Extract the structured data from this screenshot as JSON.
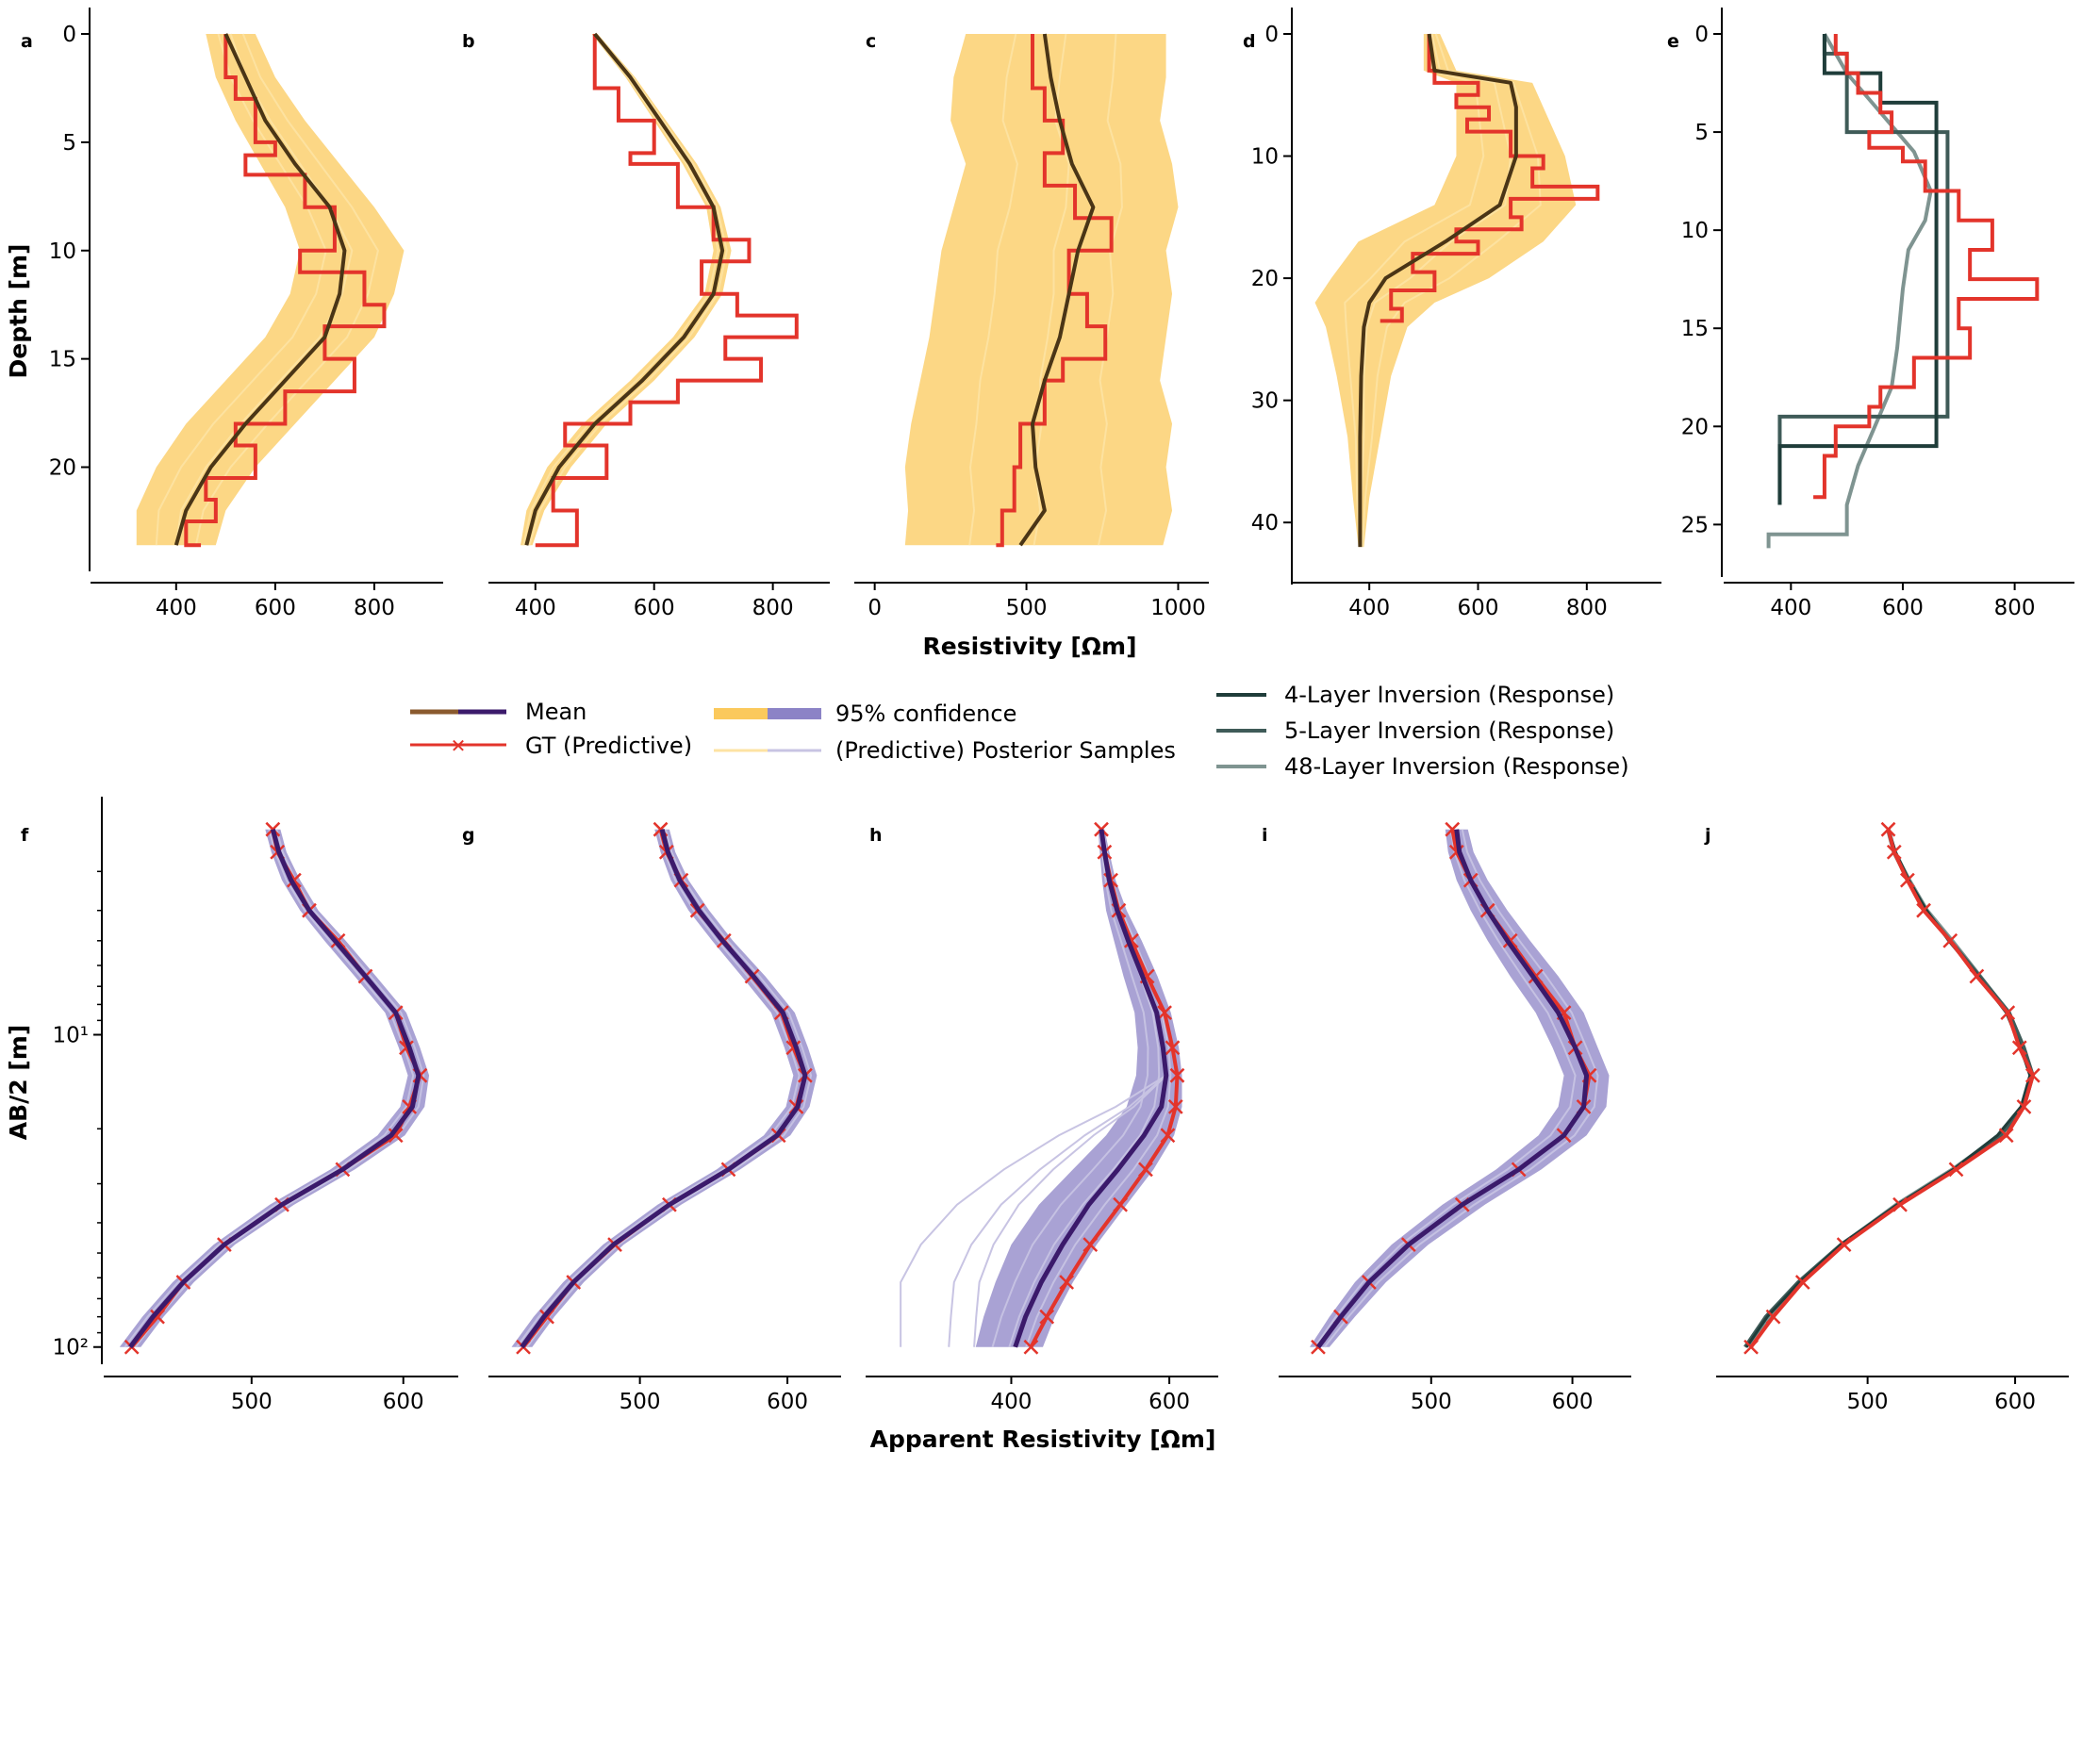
{
  "colors": {
    "mean_top": "#4a3516",
    "mean_bottom": "#3b1a6b",
    "gt": "#e3342b",
    "ci_top": "#fbc95c",
    "ci_bottom": "#8c83c6",
    "sample_top": "#fde3a3",
    "sample_bottom": "#c8c4e3",
    "inv4": "#1f3d3a",
    "inv5": "#3f5b58",
    "inv48": "#7f9491"
  },
  "labels": {
    "depth_axis": "Depth [m]",
    "ab2_axis": "AB/2 [m]",
    "resistivity_axis": "Resistivity  [Ωm]",
    "apparent_axis": "Apparent Resistivity [Ωm]"
  },
  "legend": {
    "mean": "Mean",
    "gt": "GT (Predictive)",
    "ci": "95% confidence",
    "samples": "(Predictive) Posterior Samples",
    "inv4": "4-Layer Inversion (Response)",
    "inv5": "5-Layer Inversion (Response)",
    "inv48": "48-Layer Inversion (Response)"
  },
  "panel_letters": [
    "a",
    "b",
    "c",
    "d",
    "e",
    "f",
    "g",
    "h",
    "i",
    "j"
  ],
  "chart_data": [
    {
      "panel": "a",
      "type": "line",
      "orientation": "depth-profile",
      "xlim": [
        250,
        920
      ],
      "ylim": [
        0,
        24.2
      ],
      "y_reversed": true,
      "xticks": [
        "400",
        "600",
        "800"
      ],
      "yticks": [
        "0",
        "5",
        "10",
        "15",
        "20"
      ],
      "depth": [
        0,
        2,
        4,
        6,
        8,
        10,
        12,
        14,
        16,
        18,
        20,
        22,
        23.6
      ],
      "mean": [
        500,
        540,
        580,
        640,
        710,
        740,
        730,
        700,
        620,
        540,
        470,
        420,
        400
      ],
      "ci_low": [
        460,
        480,
        520,
        570,
        620,
        650,
        630,
        580,
        500,
        420,
        360,
        320,
        320
      ],
      "ci_high": [
        560,
        600,
        660,
        730,
        800,
        860,
        840,
        800,
        720,
        640,
        560,
        500,
        480
      ],
      "gt": [
        [
          500,
          0
        ],
        [
          520,
          2
        ],
        [
          560,
          3
        ],
        [
          600,
          5
        ],
        [
          540,
          5.6
        ],
        [
          660,
          6.5
        ],
        [
          720,
          8
        ],
        [
          650,
          10
        ],
        [
          780,
          11
        ],
        [
          820,
          12.5
        ],
        [
          700,
          13.5
        ],
        [
          760,
          15
        ],
        [
          620,
          16.5
        ],
        [
          520,
          18
        ],
        [
          560,
          19
        ],
        [
          460,
          20.5
        ],
        [
          480,
          21.5
        ],
        [
          420,
          22.5
        ],
        [
          450,
          23.6
        ]
      ]
    },
    {
      "panel": "b",
      "type": "line",
      "orientation": "depth-profile",
      "xlim": [
        340,
        880
      ],
      "ylim": [
        0,
        24.2
      ],
      "y_reversed": true,
      "xticks": [
        "400",
        "600",
        "800"
      ],
      "yticks": [],
      "depth": [
        0,
        2,
        4,
        6,
        8,
        10,
        12,
        14,
        16,
        18,
        20,
        22,
        23.6
      ],
      "mean": [
        500,
        560,
        610,
        660,
        700,
        715,
        700,
        650,
        580,
        500,
        440,
        400,
        385
      ],
      "ci_low": [
        495,
        552,
        600,
        648,
        688,
        700,
        685,
        632,
        560,
        480,
        420,
        385,
        375
      ],
      "ci_high": [
        505,
        568,
        620,
        672,
        712,
        730,
        715,
        668,
        600,
        520,
        460,
        415,
        395
      ],
      "gt": [
        [
          500,
          0
        ],
        [
          540,
          2.5
        ],
        [
          600,
          4
        ],
        [
          560,
          5.5
        ],
        [
          640,
          6
        ],
        [
          700,
          8
        ],
        [
          760,
          9.5
        ],
        [
          680,
          10.5
        ],
        [
          740,
          12
        ],
        [
          840,
          13
        ],
        [
          720,
          14
        ],
        [
          780,
          15
        ],
        [
          640,
          16
        ],
        [
          560,
          17
        ],
        [
          450,
          18
        ],
        [
          520,
          19
        ],
        [
          430,
          20.5
        ],
        [
          470,
          22
        ],
        [
          400,
          23.6
        ]
      ]
    },
    {
      "panel": "c",
      "type": "line",
      "orientation": "depth-profile",
      "xlim": [
        -30,
        1070
      ],
      "ylim": [
        0,
        24.2
      ],
      "y_reversed": true,
      "xticks": [
        "0",
        "500",
        "1000"
      ],
      "yticks": [],
      "depth": [
        0,
        2,
        4,
        6,
        8,
        10,
        12,
        14,
        16,
        18,
        20,
        22,
        23.6
      ],
      "mean": [
        560,
        580,
        610,
        650,
        720,
        670,
        640,
        610,
        560,
        520,
        530,
        560,
        480
      ],
      "ci_low": [
        300,
        260,
        250,
        300,
        260,
        220,
        200,
        180,
        150,
        120,
        100,
        110,
        100
      ],
      "ci_high": [
        960,
        960,
        940,
        980,
        1000,
        960,
        980,
        960,
        940,
        980,
        960,
        980,
        950
      ],
      "gt": [
        [
          520,
          0
        ],
        [
          560,
          2.5
        ],
        [
          620,
          4
        ],
        [
          560,
          5.5
        ],
        [
          660,
          7
        ],
        [
          780,
          8.5
        ],
        [
          640,
          10
        ],
        [
          700,
          12
        ],
        [
          760,
          13.5
        ],
        [
          620,
          15
        ],
        [
          560,
          16
        ],
        [
          480,
          18
        ],
        [
          460,
          20
        ],
        [
          420,
          22
        ],
        [
          400,
          23.6
        ]
      ]
    },
    {
      "panel": "d",
      "type": "line",
      "orientation": "depth-profile",
      "xlim": [
        280,
        920
      ],
      "ylim": [
        0,
        44
      ],
      "y_reversed": true,
      "xticks": [
        "400",
        "600",
        "800"
      ],
      "yticks": [
        "0",
        "10",
        "20",
        "30",
        "40"
      ],
      "depth": [
        0,
        3,
        4,
        6,
        10,
        14,
        17,
        20,
        22,
        24,
        28,
        33,
        38,
        42
      ],
      "mean": [
        510,
        520,
        660,
        670,
        670,
        640,
        540,
        430,
        400,
        390,
        385,
        383,
        383,
        383
      ],
      "ci_low": [
        500,
        500,
        560,
        560,
        560,
        520,
        380,
        330,
        300,
        320,
        340,
        360,
        370,
        380
      ],
      "ci_high": [
        530,
        560,
        700,
        720,
        760,
        780,
        720,
        620,
        520,
        470,
        440,
        420,
        400,
        390
      ],
      "gt": [
        [
          510,
          0
        ],
        [
          520,
          3
        ],
        [
          600,
          4
        ],
        [
          560,
          5
        ],
        [
          620,
          6
        ],
        [
          580,
          7
        ],
        [
          660,
          8
        ],
        [
          720,
          10
        ],
        [
          700,
          11
        ],
        [
          820,
          12.5
        ],
        [
          660,
          13.5
        ],
        [
          680,
          15
        ],
        [
          560,
          16
        ],
        [
          600,
          17
        ],
        [
          480,
          18
        ],
        [
          520,
          19.5
        ],
        [
          440,
          21
        ],
        [
          460,
          22.5
        ],
        [
          420,
          23.5
        ]
      ]
    },
    {
      "panel": "e",
      "type": "line",
      "orientation": "depth-profile",
      "xlim": [
        300,
        890
      ],
      "ylim": [
        0,
        27
      ],
      "y_reversed": true,
      "xticks": [
        "400",
        "600",
        "800"
      ],
      "yticks": [
        "0",
        "5",
        "10",
        "15",
        "20",
        "25"
      ],
      "gt": [
        [
          480,
          0
        ],
        [
          500,
          1
        ],
        [
          520,
          2
        ],
        [
          560,
          3
        ],
        [
          580,
          4
        ],
        [
          540,
          5
        ],
        [
          600,
          5.8
        ],
        [
          640,
          6.5
        ],
        [
          700,
          8
        ],
        [
          760,
          9.5
        ],
        [
          720,
          11
        ],
        [
          840,
          12.5
        ],
        [
          700,
          13.5
        ],
        [
          720,
          15
        ],
        [
          620,
          16.5
        ],
        [
          560,
          18
        ],
        [
          540,
          19
        ],
        [
          480,
          20
        ],
        [
          460,
          21.5
        ],
        [
          440,
          23.6
        ]
      ],
      "inv4": [
        [
          460,
          0
        ],
        [
          460,
          2
        ],
        [
          560,
          2
        ],
        [
          560,
          3.5
        ],
        [
          660,
          3.5
        ],
        [
          660,
          21
        ],
        [
          380,
          21
        ],
        [
          380,
          24
        ]
      ],
      "inv5": [
        [
          460,
          0
        ],
        [
          460,
          1
        ],
        [
          500,
          1
        ],
        [
          500,
          5
        ],
        [
          680,
          5
        ],
        [
          680,
          19.5
        ],
        [
          380,
          19.5
        ],
        [
          380,
          24
        ]
      ],
      "inv48": [
        [
          460,
          0
        ],
        [
          500,
          2
        ],
        [
          560,
          4
        ],
        [
          620,
          6
        ],
        [
          650,
          8
        ],
        [
          640,
          9.5
        ],
        [
          610,
          11
        ],
        [
          600,
          13
        ],
        [
          590,
          16
        ],
        [
          580,
          18
        ],
        [
          550,
          20
        ],
        [
          520,
          22
        ],
        [
          500,
          24
        ],
        [
          500,
          25.5
        ],
        [
          360,
          25.5
        ],
        [
          360,
          26.2
        ]
      ]
    },
    {
      "panel": "f",
      "type": "line",
      "orientation": "sounding-curve",
      "xlim": [
        410,
        630
      ],
      "ylim": [
        2.1,
        103
      ],
      "y_scale": "log",
      "xticks": [
        "500",
        "600"
      ],
      "yticks": [
        "10¹",
        "10²"
      ],
      "ab2": [
        2.2,
        2.6,
        3.2,
        4,
        5,
        6.5,
        8.5,
        11,
        13.5,
        17,
        21,
        27,
        35,
        47,
        62,
        80,
        100
      ],
      "mean": [
        514,
        518,
        526,
        538,
        555,
        575,
        595,
        604,
        610,
        606,
        592,
        560,
        520,
        482,
        455,
        435,
        420
      ],
      "gt": [
        514,
        517,
        528,
        538,
        557,
        575,
        595,
        602,
        611,
        604,
        595,
        560,
        520,
        482,
        455,
        438,
        421
      ],
      "ci_low": [
        509,
        513,
        520,
        532,
        548,
        568,
        588,
        597,
        603,
        598,
        583,
        552,
        512,
        475,
        448,
        428,
        413
      ],
      "ci_high": [
        519,
        523,
        532,
        544,
        562,
        582,
        602,
        611,
        617,
        614,
        601,
        568,
        528,
        489,
        462,
        442,
        427
      ]
    },
    {
      "panel": "g",
      "type": "line",
      "orientation": "sounding-curve",
      "xlim": [
        405,
        630
      ],
      "ylim": [
        2.1,
        103
      ],
      "y_scale": "log",
      "xticks": [
        "500",
        "600"
      ],
      "yticks": [],
      "ab2": [
        2.2,
        2.6,
        3.2,
        4,
        5,
        6.5,
        8.5,
        11,
        13.5,
        17,
        21,
        27,
        35,
        47,
        62,
        80,
        100
      ],
      "mean": [
        515,
        519,
        527,
        540,
        556,
        577,
        597,
        606,
        612,
        607,
        593,
        560,
        520,
        482,
        455,
        435,
        420
      ],
      "gt": [
        514,
        518,
        528,
        539,
        557,
        576,
        596,
        604,
        612,
        606,
        594,
        560,
        520,
        483,
        455,
        437,
        421
      ],
      "ci_low": [
        510,
        514,
        521,
        533,
        549,
        569,
        589,
        598,
        604,
        599,
        584,
        552,
        512,
        475,
        448,
        428,
        413
      ],
      "ci_high": [
        520,
        524,
        533,
        547,
        563,
        585,
        605,
        614,
        620,
        615,
        602,
        568,
        528,
        489,
        462,
        442,
        427
      ]
    },
    {
      "panel": "h",
      "type": "line",
      "orientation": "sounding-curve",
      "xlim": [
        230,
        650
      ],
      "ylim": [
        2.1,
        103
      ],
      "y_scale": "log",
      "xticks": [
        "400",
        "600"
      ],
      "yticks": [],
      "ab2": [
        2.2,
        2.6,
        3.2,
        4,
        5,
        6.5,
        8.5,
        11,
        13.5,
        17,
        21,
        27,
        35,
        47,
        62,
        80,
        100
      ],
      "mean": [
        514,
        518,
        524,
        534,
        548,
        566,
        584,
        592,
        596,
        590,
        568,
        535,
        498,
        465,
        438,
        418,
        405
      ],
      "gt": [
        514,
        518,
        526,
        536,
        552,
        572,
        594,
        604,
        610,
        608,
        598,
        570,
        538,
        500,
        470,
        445,
        425
      ],
      "ci_low": [
        510,
        512,
        515,
        520,
        530,
        542,
        556,
        560,
        558,
        546,
        520,
        478,
        435,
        400,
        380,
        365,
        355
      ],
      "ci_high": [
        518,
        524,
        532,
        546,
        565,
        585,
        602,
        612,
        616,
        616,
        606,
        580,
        546,
        508,
        478,
        455,
        440
      ]
    },
    {
      "panel": "i",
      "type": "line",
      "orientation": "sounding-curve",
      "xlim": [
        400,
        635
      ],
      "ylim": [
        2.1,
        103
      ],
      "y_scale": "log",
      "xticks": [
        "500",
        "600"
      ],
      "yticks": [],
      "ab2": [
        2.2,
        2.6,
        3.2,
        4,
        5,
        6.5,
        8.5,
        11,
        13.5,
        17,
        21,
        27,
        35,
        47,
        62,
        80,
        100
      ],
      "mean": [
        518,
        520,
        528,
        540,
        554,
        572,
        590,
        602,
        610,
        608,
        594,
        562,
        522,
        484,
        456,
        436,
        420
      ],
      "gt": [
        515,
        518,
        528,
        540,
        556,
        574,
        594,
        602,
        612,
        608,
        594,
        562,
        522,
        484,
        456,
        436,
        420
      ],
      "ci_low": [
        510,
        512,
        518,
        528,
        540,
        556,
        574,
        586,
        594,
        590,
        576,
        546,
        508,
        472,
        446,
        428,
        414
      ],
      "ci_high": [
        526,
        530,
        540,
        554,
        570,
        590,
        608,
        618,
        626,
        624,
        610,
        578,
        538,
        498,
        468,
        446,
        428
      ]
    },
    {
      "panel": "j",
      "type": "line",
      "orientation": "sounding-curve",
      "xlim": [
        405,
        630
      ],
      "ylim": [
        2.1,
        103
      ],
      "y_scale": "log",
      "xticks": [
        "500",
        "600"
      ],
      "yticks": [],
      "ab2": [
        2.2,
        2.6,
        3.2,
        4,
        5,
        6.5,
        8.5,
        11,
        13.5,
        17,
        21,
        27,
        35,
        47,
        62,
        80,
        100
      ],
      "gt": [
        514,
        518,
        527,
        538,
        556,
        574,
        595,
        603,
        612,
        606,
        594,
        560,
        522,
        484,
        456,
        436,
        421
      ],
      "inv4": [
        514,
        519,
        528,
        540,
        555,
        575,
        594,
        604,
        610,
        604,
        588,
        558,
        520,
        482,
        454,
        432,
        418
      ],
      "inv5": [
        514,
        518,
        527,
        539,
        556,
        576,
        596,
        606,
        612,
        606,
        590,
        559,
        521,
        482,
        453,
        431,
        417
      ],
      "inv48": [
        514,
        518,
        528,
        540,
        557,
        576,
        595,
        604,
        611,
        605,
        590,
        558,
        520,
        483,
        455,
        435,
        420
      ]
    }
  ]
}
